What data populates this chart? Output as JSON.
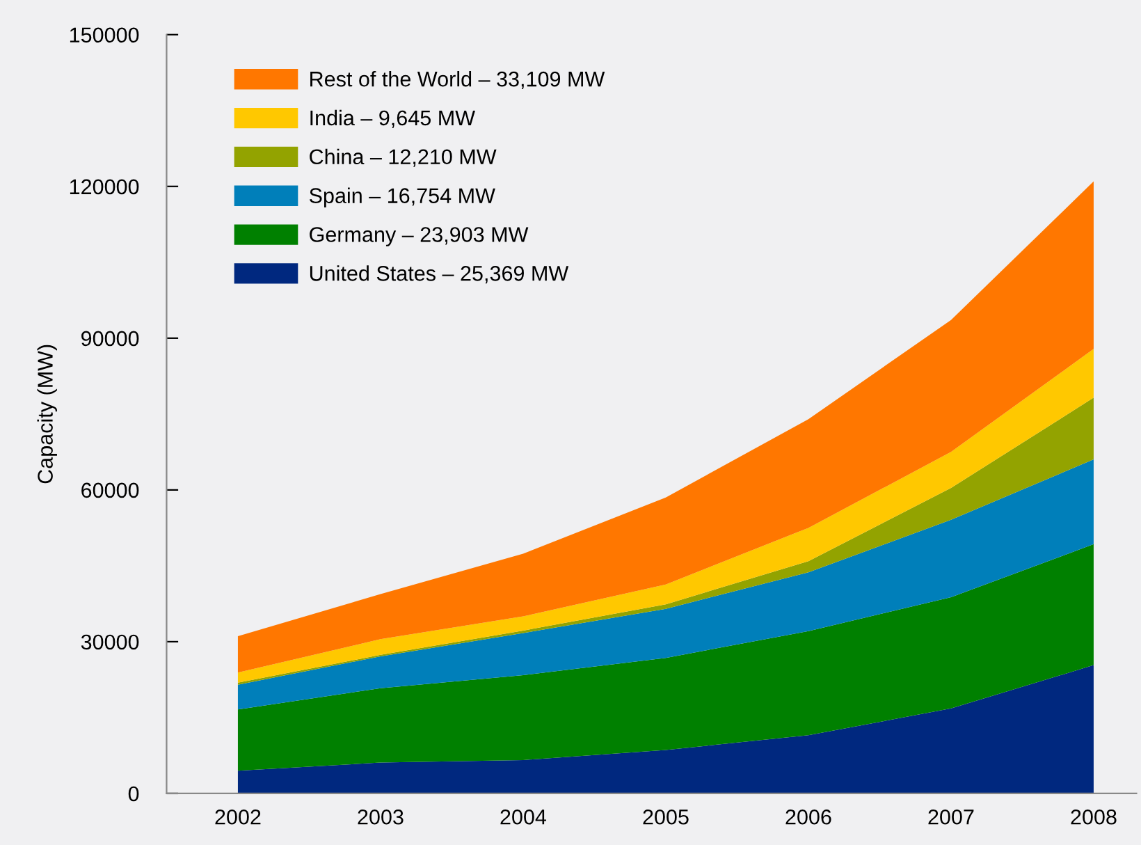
{
  "chart_data": {
    "type": "area",
    "stacked": true,
    "ylabel": "Capacity (MW)",
    "x": [
      2002,
      2003,
      2004,
      2005,
      2006,
      2007,
      2008
    ],
    "xlim": [
      2001.5,
      2008.3
    ],
    "xticks": [
      2002,
      2003,
      2004,
      2005,
      2006,
      2007,
      2008
    ],
    "ylim": [
      0,
      150000
    ],
    "yticks": [
      0,
      30000,
      60000,
      90000,
      120000,
      150000
    ],
    "grid": false,
    "legend": "top left",
    "series": [
      {
        "name": "United States – 25,369 MW",
        "color": "#00287f",
        "values": [
          4500,
          6100,
          6600,
          8600,
          11500,
          16800,
          25369
        ]
      },
      {
        "name": "Germany – 23,903 MW",
        "color": "#008000",
        "values": [
          12100,
          14700,
          16800,
          18200,
          20600,
          22000,
          23903
        ]
      },
      {
        "name": "Spain – 16,754 MW",
        "color": "#007fba",
        "values": [
          4900,
          6300,
          8300,
          9700,
          11600,
          15300,
          16754
        ]
      },
      {
        "name": "China – 12,210 MW",
        "color": "#93a300",
        "values": [
          400,
          300,
          500,
          900,
          2200,
          6300,
          12210
        ]
      },
      {
        "name": "India – 9,645 MW",
        "color": "#ffc800",
        "values": [
          2000,
          3100,
          2800,
          3900,
          6600,
          7100,
          9645
        ]
      },
      {
        "name": "Rest of the World – 33,109 MW",
        "color": "#ff7700",
        "values": [
          7200,
          8900,
          12400,
          17200,
          21500,
          26100,
          33109
        ]
      }
    ]
  }
}
